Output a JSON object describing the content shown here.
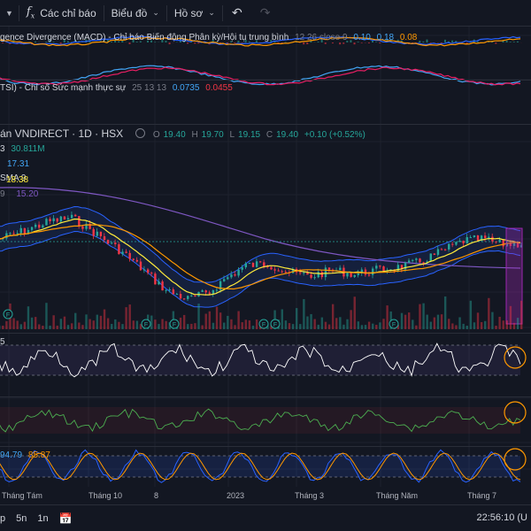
{
  "toolbar": {
    "indicators_label": "Các chỉ báo",
    "chart_label": "Biểu đồ",
    "profile_label": "Hồ sơ"
  },
  "macd": {
    "title": "gence Divergence (MACD) - Chỉ báo Biến động Phân kỳ/Hội tụ trung bình",
    "params": "12 26 close 9",
    "v1": "0.10",
    "v2": "0.18",
    "v3": "0.08"
  },
  "tsi": {
    "title": "TSI) - Chỉ số Sức mạnh thực sự",
    "params": "25 13 13",
    "v1": "0.0735",
    "v2": "0.0455"
  },
  "main": {
    "title": "án VNDIRECT · 1D · HSX",
    "o_label": "O",
    "o": "19.40",
    "h_label": "H",
    "h": "19.70",
    "l_label": "L",
    "l": "19.15",
    "c_label": "C",
    "c": "19.40",
    "change": "+0.10 (+0.52%)",
    "vol_value": "30.811M",
    "vol_prefix": "3",
    "bb_value": "17.31",
    "sma_label": "SMA 9",
    "ma_value": "18.38",
    "ma2_prefix": "9",
    "ma2_value": "15.20"
  },
  "rsi_label": "5",
  "stoch": {
    "v1": "94.79",
    "v2": "85.87"
  },
  "time_axis": [
    "Tháng Tám",
    "Tháng 10",
    "8",
    "2023",
    "Tháng 3",
    "Tháng Năm",
    "Tháng 7"
  ],
  "bottom": {
    "ranges": [
      "p",
      "5n",
      "1n"
    ],
    "time": "22:56:10 (U"
  },
  "colors": {
    "bg": "#131722",
    "up": "#26a69a",
    "down": "#f23645",
    "bb": "#2962ff",
    "ma": "#ffeb3b",
    "ma_slow": "#ff9800",
    "long_ma": "#7e57c2"
  }
}
